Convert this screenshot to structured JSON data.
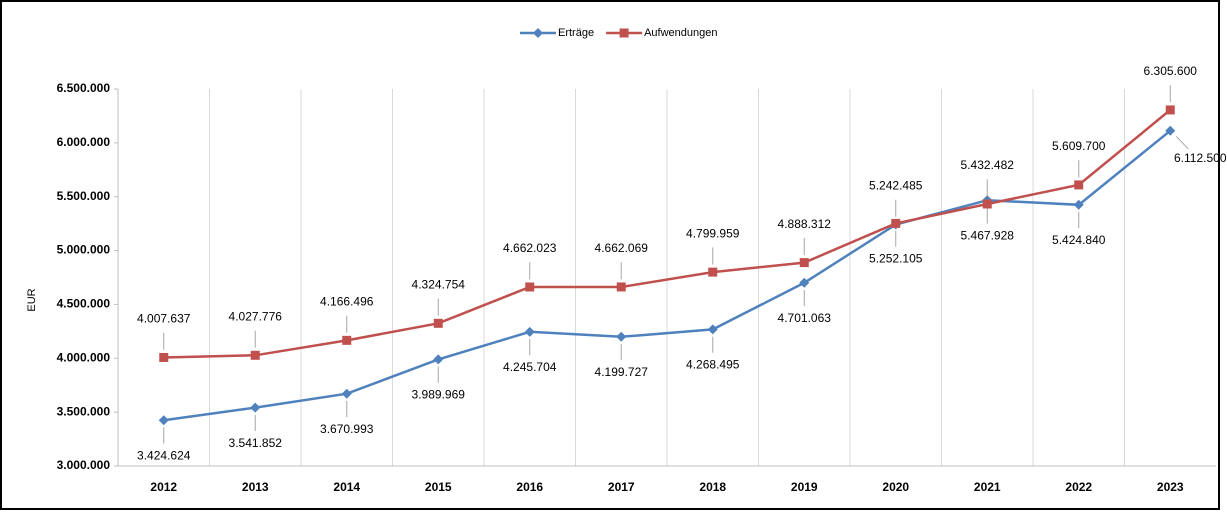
{
  "chart_data": {
    "type": "line",
    "categories": [
      "2012",
      "2013",
      "2014",
      "2015",
      "2016",
      "2017",
      "2018",
      "2019",
      "2020",
      "2021",
      "2022",
      "2023"
    ],
    "series": [
      {
        "name": "Erträge",
        "color": "#4f81bd",
        "values": [
          3424624,
          3541852,
          3670993,
          3989969,
          4245704,
          4199727,
          4268495,
          4701063,
          5242485,
          5467928,
          5424840,
          6112500
        ],
        "value_labels": [
          "3.424.624",
          "3.541.852",
          "3.670.993",
          "3.989.969",
          "4.245.704",
          "4.199.727",
          "4.268.495",
          "4.701.063",
          "5.242.485",
          "5.467.928",
          "5.424.840",
          "6.112.500"
        ]
      },
      {
        "name": "Aufwendungen",
        "color": "#c0504d",
        "values": [
          4007637,
          4027776,
          4166496,
          4324754,
          4662023,
          4662069,
          4799959,
          4888312,
          5252105,
          5432482,
          5609700,
          6305600
        ],
        "value_labels": [
          "4.007.637",
          "4.027.776",
          "4.166.496",
          "4.324.754",
          "4.662.023",
          "4.662.069",
          "4.799.959",
          "4.888.312",
          "5.252.105",
          "5.432.482",
          "5.609.700",
          "6.305.600"
        ]
      }
    ],
    "ylabel": "EUR",
    "ylim": [
      3000000,
      6500000
    ],
    "yticks": [
      {
        "value": 3000000,
        "label": "3.000.000"
      },
      {
        "value": 3500000,
        "label": "3.500.000"
      },
      {
        "value": 4000000,
        "label": "4.000.000"
      },
      {
        "value": 4500000,
        "label": "4.500.000"
      },
      {
        "value": 5000000,
        "label": "5.000.000"
      },
      {
        "value": 5500000,
        "label": "5.500.000"
      },
      {
        "value": 6000000,
        "label": "6.000.000"
      },
      {
        "value": 6500000,
        "label": "6.500.000"
      }
    ],
    "legend": "top"
  }
}
